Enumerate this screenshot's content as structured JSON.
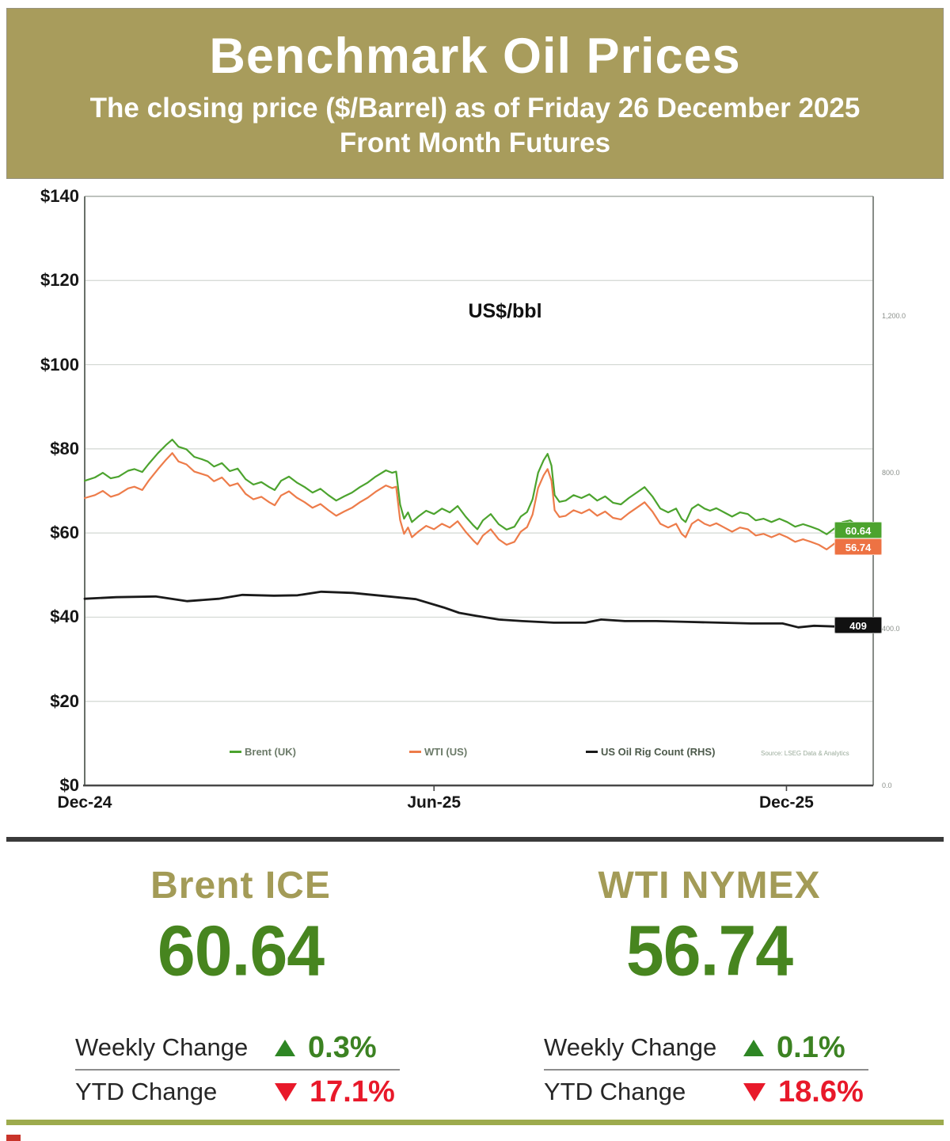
{
  "header": {
    "title": "Benchmark Oil Prices",
    "subtitle": "The closing price ($/Barrel) as of Friday 26 December 2025",
    "subtitle2": "Front Month  Futures"
  },
  "chart_data": {
    "type": "line",
    "title": "US$/bbl",
    "grid": true,
    "legend_position": "bottom",
    "source_note": "Source: LSEG Data & Analytics",
    "x_ticks": [
      {
        "label": "Dec-24",
        "f": 0.0
      },
      {
        "label": "Jun-25",
        "f": 0.443
      },
      {
        "label": "Dec-25",
        "f": 0.89
      }
    ],
    "left_axis": {
      "min": 0,
      "max": 140,
      "step": 20,
      "tick_labels": [
        "$140",
        "$120",
        "$100",
        "$80",
        "$60",
        "$40",
        "$20",
        "$0"
      ],
      "tick_values": [
        140,
        120,
        100,
        80,
        60,
        40,
        20,
        0
      ]
    },
    "right_axis": {
      "min": 0,
      "max": 1200,
      "tick_labels": [
        "1,200.0",
        "800.0",
        "400.0",
        "0.0"
      ],
      "tick_values": [
        1200,
        800,
        400,
        0
      ]
    },
    "series": [
      {
        "name": "Brent (UK)",
        "axis": "left",
        "color": "#4ca32e",
        "end_label": "60.64",
        "end_label_bg": "#4ca32e",
        "width": 2.2,
        "points": [
          [
            0.0,
            72.4
          ],
          [
            0.013,
            73.2
          ],
          [
            0.023,
            74.3
          ],
          [
            0.033,
            73.0
          ],
          [
            0.043,
            73.4
          ],
          [
            0.055,
            74.8
          ],
          [
            0.063,
            75.2
          ],
          [
            0.073,
            74.5
          ],
          [
            0.081,
            76.4
          ],
          [
            0.093,
            79.0
          ],
          [
            0.103,
            80.9
          ],
          [
            0.111,
            82.2
          ],
          [
            0.119,
            80.5
          ],
          [
            0.129,
            79.9
          ],
          [
            0.139,
            78.1
          ],
          [
            0.149,
            77.5
          ],
          [
            0.156,
            77.0
          ],
          [
            0.164,
            75.8
          ],
          [
            0.174,
            76.6
          ],
          [
            0.184,
            74.7
          ],
          [
            0.194,
            75.3
          ],
          [
            0.204,
            72.8
          ],
          [
            0.214,
            71.5
          ],
          [
            0.224,
            72.1
          ],
          [
            0.234,
            70.9
          ],
          [
            0.241,
            70.2
          ],
          [
            0.249,
            72.4
          ],
          [
            0.259,
            73.4
          ],
          [
            0.269,
            72.0
          ],
          [
            0.279,
            70.9
          ],
          [
            0.289,
            69.6
          ],
          [
            0.299,
            70.5
          ],
          [
            0.309,
            69.0
          ],
          [
            0.319,
            67.7
          ],
          [
            0.329,
            68.7
          ],
          [
            0.339,
            69.6
          ],
          [
            0.349,
            70.9
          ],
          [
            0.359,
            72.0
          ],
          [
            0.369,
            73.4
          ],
          [
            0.382,
            74.9
          ],
          [
            0.39,
            74.3
          ],
          [
            0.395,
            74.6
          ],
          [
            0.4,
            66.8
          ],
          [
            0.405,
            63.4
          ],
          [
            0.41,
            64.9
          ],
          [
            0.415,
            62.6
          ],
          [
            0.423,
            63.9
          ],
          [
            0.433,
            65.3
          ],
          [
            0.443,
            64.5
          ],
          [
            0.453,
            65.8
          ],
          [
            0.463,
            64.9
          ],
          [
            0.473,
            66.4
          ],
          [
            0.483,
            63.9
          ],
          [
            0.493,
            61.8
          ],
          [
            0.498,
            60.9
          ],
          [
            0.505,
            63.0
          ],
          [
            0.515,
            64.5
          ],
          [
            0.525,
            62.1
          ],
          [
            0.535,
            60.8
          ],
          [
            0.545,
            61.5
          ],
          [
            0.553,
            63.9
          ],
          [
            0.561,
            65.0
          ],
          [
            0.568,
            68.0
          ],
          [
            0.575,
            74.3
          ],
          [
            0.582,
            77.3
          ],
          [
            0.587,
            78.8
          ],
          [
            0.592,
            76.0
          ],
          [
            0.596,
            69.0
          ],
          [
            0.602,
            67.4
          ],
          [
            0.61,
            67.7
          ],
          [
            0.62,
            69.0
          ],
          [
            0.63,
            68.3
          ],
          [
            0.64,
            69.2
          ],
          [
            0.65,
            67.7
          ],
          [
            0.66,
            68.7
          ],
          [
            0.67,
            67.2
          ],
          [
            0.68,
            66.8
          ],
          [
            0.69,
            68.3
          ],
          [
            0.7,
            69.6
          ],
          [
            0.71,
            70.9
          ],
          [
            0.72,
            68.7
          ],
          [
            0.73,
            65.8
          ],
          [
            0.74,
            64.9
          ],
          [
            0.75,
            65.8
          ],
          [
            0.757,
            63.4
          ],
          [
            0.762,
            62.6
          ],
          [
            0.77,
            65.8
          ],
          [
            0.778,
            66.8
          ],
          [
            0.786,
            65.8
          ],
          [
            0.793,
            65.3
          ],
          [
            0.801,
            65.9
          ],
          [
            0.811,
            64.9
          ],
          [
            0.821,
            63.9
          ],
          [
            0.831,
            64.9
          ],
          [
            0.841,
            64.5
          ],
          [
            0.851,
            63.0
          ],
          [
            0.861,
            63.4
          ],
          [
            0.871,
            62.6
          ],
          [
            0.881,
            63.4
          ],
          [
            0.891,
            62.6
          ],
          [
            0.901,
            61.5
          ],
          [
            0.911,
            62.1
          ],
          [
            0.921,
            61.5
          ],
          [
            0.931,
            60.8
          ],
          [
            0.941,
            59.7
          ],
          [
            0.951,
            61.1
          ],
          [
            0.961,
            62.6
          ],
          [
            0.971,
            63.0
          ],
          [
            0.981,
            61.5
          ],
          [
            0.991,
            60.2
          ],
          [
            1.0,
            60.64
          ]
        ]
      },
      {
        "name": "WTI (US)",
        "axis": "left",
        "color": "#ed7c4a",
        "end_label": "56.74",
        "end_label_bg": "#ed7243",
        "width": 2.2,
        "points": [
          [
            0.0,
            68.3
          ],
          [
            0.013,
            69.0
          ],
          [
            0.023,
            70.0
          ],
          [
            0.033,
            68.6
          ],
          [
            0.043,
            69.2
          ],
          [
            0.055,
            70.6
          ],
          [
            0.063,
            71.0
          ],
          [
            0.073,
            70.2
          ],
          [
            0.081,
            72.4
          ],
          [
            0.093,
            75.2
          ],
          [
            0.103,
            77.4
          ],
          [
            0.111,
            79.0
          ],
          [
            0.119,
            77.0
          ],
          [
            0.129,
            76.3
          ],
          [
            0.139,
            74.6
          ],
          [
            0.149,
            74.0
          ],
          [
            0.156,
            73.6
          ],
          [
            0.164,
            72.3
          ],
          [
            0.174,
            73.2
          ],
          [
            0.184,
            71.2
          ],
          [
            0.194,
            71.8
          ],
          [
            0.204,
            69.3
          ],
          [
            0.214,
            68.0
          ],
          [
            0.224,
            68.6
          ],
          [
            0.234,
            67.3
          ],
          [
            0.241,
            66.6
          ],
          [
            0.249,
            68.9
          ],
          [
            0.259,
            69.9
          ],
          [
            0.269,
            68.4
          ],
          [
            0.279,
            67.3
          ],
          [
            0.289,
            66.0
          ],
          [
            0.299,
            66.9
          ],
          [
            0.309,
            65.4
          ],
          [
            0.319,
            64.1
          ],
          [
            0.329,
            65.1
          ],
          [
            0.339,
            66.0
          ],
          [
            0.349,
            67.3
          ],
          [
            0.359,
            68.4
          ],
          [
            0.369,
            69.8
          ],
          [
            0.382,
            71.3
          ],
          [
            0.39,
            70.7
          ],
          [
            0.395,
            71.0
          ],
          [
            0.4,
            63.1
          ],
          [
            0.405,
            59.8
          ],
          [
            0.41,
            61.3
          ],
          [
            0.415,
            59.0
          ],
          [
            0.423,
            60.3
          ],
          [
            0.433,
            61.7
          ],
          [
            0.443,
            60.9
          ],
          [
            0.453,
            62.2
          ],
          [
            0.463,
            61.3
          ],
          [
            0.473,
            62.8
          ],
          [
            0.483,
            60.3
          ],
          [
            0.493,
            58.2
          ],
          [
            0.498,
            57.3
          ],
          [
            0.505,
            59.4
          ],
          [
            0.515,
            60.9
          ],
          [
            0.525,
            58.5
          ],
          [
            0.535,
            57.2
          ],
          [
            0.545,
            57.9
          ],
          [
            0.553,
            60.3
          ],
          [
            0.561,
            61.4
          ],
          [
            0.568,
            64.4
          ],
          [
            0.575,
            70.7
          ],
          [
            0.582,
            73.7
          ],
          [
            0.587,
            75.2
          ],
          [
            0.592,
            72.4
          ],
          [
            0.596,
            65.4
          ],
          [
            0.602,
            63.8
          ],
          [
            0.61,
            64.1
          ],
          [
            0.62,
            65.4
          ],
          [
            0.63,
            64.7
          ],
          [
            0.64,
            65.6
          ],
          [
            0.65,
            64.1
          ],
          [
            0.66,
            65.1
          ],
          [
            0.67,
            63.6
          ],
          [
            0.68,
            63.2
          ],
          [
            0.69,
            64.7
          ],
          [
            0.7,
            66.0
          ],
          [
            0.71,
            67.3
          ],
          [
            0.72,
            65.1
          ],
          [
            0.73,
            62.2
          ],
          [
            0.74,
            61.3
          ],
          [
            0.75,
            62.2
          ],
          [
            0.757,
            59.8
          ],
          [
            0.762,
            59.0
          ],
          [
            0.77,
            62.2
          ],
          [
            0.778,
            63.2
          ],
          [
            0.786,
            62.2
          ],
          [
            0.793,
            61.7
          ],
          [
            0.801,
            62.3
          ],
          [
            0.811,
            61.3
          ],
          [
            0.821,
            60.3
          ],
          [
            0.831,
            61.3
          ],
          [
            0.841,
            60.9
          ],
          [
            0.851,
            59.4
          ],
          [
            0.861,
            59.8
          ],
          [
            0.871,
            59.0
          ],
          [
            0.881,
            59.8
          ],
          [
            0.891,
            59.0
          ],
          [
            0.901,
            57.9
          ],
          [
            0.911,
            58.5
          ],
          [
            0.921,
            57.9
          ],
          [
            0.931,
            57.2
          ],
          [
            0.941,
            56.1
          ],
          [
            0.951,
            57.5
          ],
          [
            0.961,
            59.0
          ],
          [
            0.971,
            59.4
          ],
          [
            0.981,
            57.9
          ],
          [
            0.991,
            56.0
          ],
          [
            1.0,
            56.74
          ]
        ]
      },
      {
        "name": "US Oil Rig Count (RHS)",
        "axis": "right",
        "color": "#1a1a1a",
        "end_label": "409",
        "end_label_bg": "#111111",
        "width": 2.8,
        "points": [
          [
            0.0,
            477
          ],
          [
            0.04,
            481
          ],
          [
            0.09,
            483
          ],
          [
            0.13,
            471
          ],
          [
            0.17,
            477
          ],
          [
            0.2,
            487
          ],
          [
            0.24,
            485
          ],
          [
            0.27,
            486
          ],
          [
            0.3,
            495
          ],
          [
            0.34,
            492
          ],
          [
            0.36,
            488
          ],
          [
            0.39,
            482
          ],
          [
            0.42,
            476
          ],
          [
            0.455,
            455
          ],
          [
            0.475,
            441
          ],
          [
            0.495,
            434
          ],
          [
            0.525,
            424
          ],
          [
            0.555,
            420
          ],
          [
            0.595,
            416
          ],
          [
            0.635,
            416
          ],
          [
            0.655,
            424
          ],
          [
            0.685,
            420
          ],
          [
            0.725,
            420
          ],
          [
            0.765,
            418
          ],
          [
            0.805,
            416
          ],
          [
            0.845,
            414
          ],
          [
            0.885,
            414
          ],
          [
            0.905,
            404
          ],
          [
            0.925,
            408
          ],
          [
            0.955,
            406
          ],
          [
            0.975,
            409
          ],
          [
            1.0,
            409
          ]
        ]
      }
    ]
  },
  "panels": [
    {
      "title": "Brent ICE",
      "value": "60.64",
      "rows": [
        {
          "label": "Weekly Change",
          "direction": "up",
          "value": "0.3%"
        },
        {
          "label": "YTD Change",
          "direction": "down",
          "value": "17.1%"
        }
      ]
    },
    {
      "title": "WTI NYMEX",
      "value": "56.74",
      "rows": [
        {
          "label": "Weekly Change",
          "direction": "up",
          "value": "0.1%"
        },
        {
          "label": "YTD Change",
          "direction": "down",
          "value": "18.6%"
        }
      ]
    }
  ],
  "colors": {
    "header_band": "#a89c5c",
    "panel_title": "#a39b57",
    "big_value_green": "#47851f",
    "up_green": "#2e8624",
    "down_red": "#e8192a",
    "brent_line": "#4ca32e",
    "wti_line": "#ed7c4a",
    "rig_line": "#1a1a1a",
    "bottom_border": "#9dab4d"
  }
}
